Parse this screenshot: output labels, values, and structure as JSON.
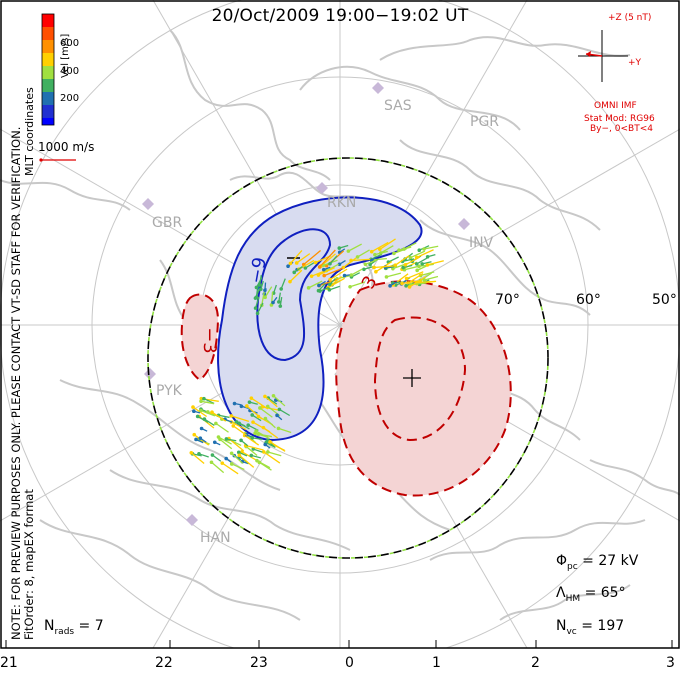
{
  "title": "20/Oct/2009 19:00−19:02 UT",
  "coordinates_label": "MLT coordinates",
  "colorbar": {
    "title": "Vel [m/s]",
    "ticks": [
      "600",
      "400",
      "200"
    ],
    "colors": [
      "#ff0000",
      "#ff8000",
      "#ffd000",
      "#b0e040",
      "#40c040",
      "#209080",
      "#2050c0",
      "#0000ff"
    ]
  },
  "reference_vector": "1000 m/s",
  "note_line1": "NOTE: FOR PREVIEW PURPOSES ONLY. PLEASE CONTACT VT-SD STAFF FOR VERIFICATION.",
  "note_line2": "FitOrder: 8, mapEX format",
  "imf": {
    "z_label": "+Z (5 nT)",
    "y_label": "+Y",
    "source": "OMNI IMF",
    "stat_mod": "Stat Mod: RG96",
    "condition": "By−, 0<BT<4"
  },
  "stations": [
    "SAS",
    "PGR",
    "RKN",
    "INV",
    "GBR",
    "PYK",
    "HAN"
  ],
  "latitude_labels": [
    "70°",
    "60°",
    "50°"
  ],
  "contour_labels": [
    "−9",
    "3",
    "−3"
  ],
  "mlt_labels": [
    "21",
    "22",
    "23",
    "0",
    "1",
    "2",
    "3"
  ],
  "stats": {
    "phi_pc": "27 kV",
    "lambda_hm": "65°",
    "n_vc": "197",
    "n_rads": "7"
  },
  "colors": {
    "positive_cell": "#c00000",
    "negative_cell": "#1020c0",
    "hmb": "#000000",
    "coastline": "#c8c8c8"
  }
}
